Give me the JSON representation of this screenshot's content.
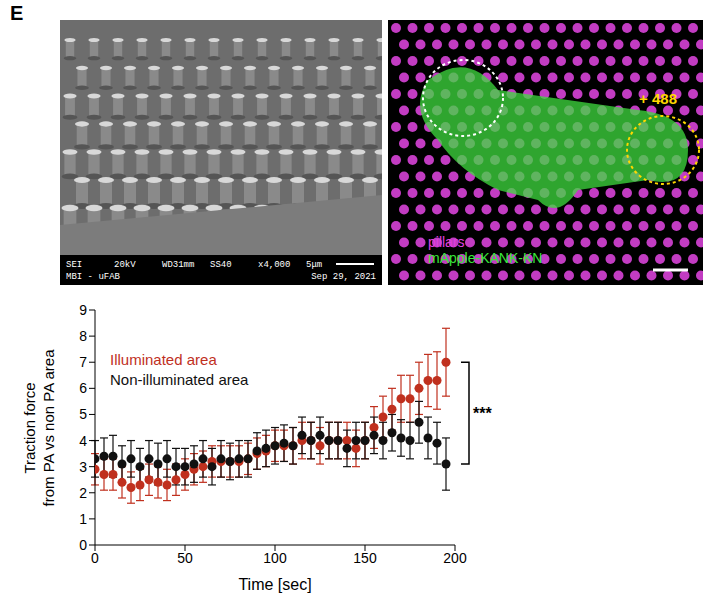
{
  "panel_letter": "E",
  "sem_image": {
    "info_bar": [
      [
        "SEI",
        "20kV",
        "WD31mm",
        "SS40",
        "x4,000",
        "5μm"
      ],
      [
        "MBI - uFAB",
        "Sep 29, 2021"
      ]
    ]
  },
  "fluorescence_image": {
    "legend": [
      {
        "text": "pillars",
        "color": "#e040e0"
      },
      {
        "text": "mApple-KANK-KN",
        "color": "#39e639"
      }
    ],
    "annotation": "+ 488"
  },
  "chart_data": {
    "type": "scatter",
    "xlabel": "Time [sec]",
    "ylabel": "Traction force\nfrom PA vs non PA area",
    "x": [
      0,
      5,
      10,
      15,
      20,
      25,
      30,
      35,
      40,
      45,
      50,
      55,
      60,
      65,
      70,
      75,
      80,
      85,
      90,
      95,
      100,
      105,
      110,
      115,
      120,
      125,
      130,
      135,
      140,
      145,
      150,
      155,
      160,
      165,
      170,
      175,
      180,
      185,
      190,
      195
    ],
    "xlim": [
      0,
      200
    ],
    "xticks": [
      0,
      50,
      100,
      150,
      200
    ],
    "ylim": [
      0,
      9
    ],
    "yticks": [
      0,
      1,
      2,
      3,
      4,
      5,
      6,
      7,
      8,
      9
    ],
    "grid": false,
    "legend": "upper left",
    "annotation": "***",
    "series": [
      {
        "name": "Illuminated area",
        "color": "#c0301e",
        "marker": "circle",
        "values": [
          2.9,
          2.7,
          2.7,
          2.4,
          2.2,
          2.3,
          2.5,
          2.4,
          2.3,
          2.5,
          2.7,
          2.9,
          3.0,
          3.2,
          3.2,
          3.2,
          3.2,
          3.3,
          3.5,
          3.6,
          3.8,
          3.8,
          3.8,
          4.0,
          4.0,
          3.8,
          4.0,
          4.0,
          4.0,
          3.7,
          4.0,
          4.5,
          4.9,
          5.2,
          5.6,
          5.6,
          6.0,
          6.3,
          6.3,
          7.0
        ],
        "errors": [
          0.6,
          0.6,
          0.6,
          0.6,
          0.6,
          0.6,
          0.6,
          0.6,
          0.6,
          0.6,
          0.6,
          0.6,
          0.6,
          0.6,
          0.6,
          0.6,
          0.6,
          0.6,
          0.6,
          0.6,
          0.6,
          0.6,
          0.7,
          0.7,
          0.7,
          0.7,
          0.7,
          0.7,
          0.7,
          0.7,
          0.7,
          0.8,
          0.8,
          0.8,
          0.9,
          0.9,
          1.0,
          1.0,
          1.1,
          1.3
        ]
      },
      {
        "name": "Non-illuminated area",
        "color": "#111111",
        "marker": "circle",
        "values": [
          3.3,
          3.4,
          3.4,
          3.1,
          3.3,
          3.0,
          3.3,
          3.1,
          3.3,
          3.0,
          3.0,
          3.1,
          3.3,
          3.0,
          3.3,
          3.2,
          3.3,
          3.3,
          3.6,
          3.7,
          3.8,
          3.9,
          3.8,
          4.2,
          4.0,
          4.2,
          4.0,
          4.0,
          3.7,
          4.0,
          4.0,
          4.2,
          4.0,
          4.3,
          4.1,
          4.0,
          4.7,
          4.1,
          3.9,
          3.1
        ],
        "errors": [
          0.7,
          0.7,
          0.8,
          0.7,
          0.7,
          0.7,
          0.7,
          0.8,
          0.7,
          0.7,
          0.7,
          0.7,
          0.7,
          0.7,
          0.7,
          0.7,
          0.7,
          0.7,
          0.7,
          0.7,
          0.7,
          0.7,
          0.7,
          0.7,
          0.7,
          0.7,
          0.7,
          0.7,
          0.7,
          0.7,
          0.7,
          0.7,
          0.7,
          0.7,
          0.7,
          0.7,
          0.8,
          0.8,
          0.8,
          1.0
        ]
      }
    ]
  }
}
